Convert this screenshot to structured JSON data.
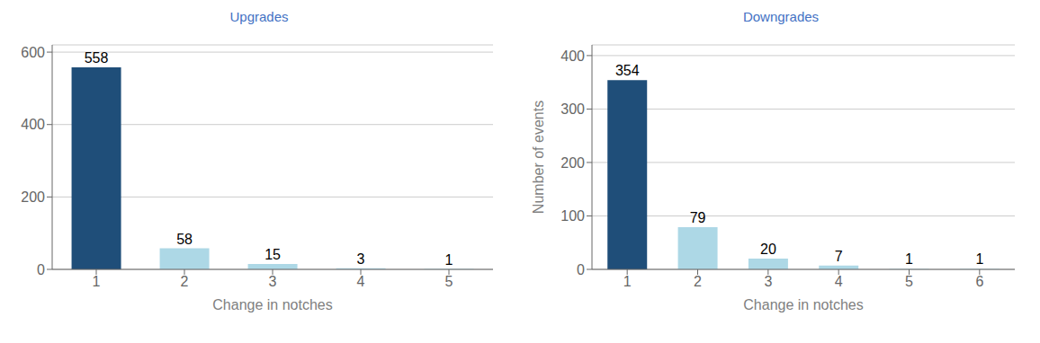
{
  "chart_data": [
    {
      "type": "bar",
      "title": "Upgrades",
      "categories": [
        1,
        2,
        3,
        4,
        5
      ],
      "values": [
        558,
        58,
        15,
        3,
        1
      ],
      "colors": [
        "#1f4e79",
        "#add8e6",
        "#add8e6",
        "#add8e6",
        "#add8e6"
      ],
      "xlabel": "Change in notches",
      "ylim": [
        0,
        620
      ],
      "yticks": [
        0,
        200,
        400,
        600
      ],
      "grid": true,
      "data_labels": true
    },
    {
      "type": "bar",
      "title": "Downgrades",
      "categories": [
        1,
        2,
        3,
        4,
        5,
        6
      ],
      "values": [
        354,
        79,
        20,
        7,
        1,
        1
      ],
      "colors": [
        "#1f4e79",
        "#add8e6",
        "#add8e6",
        "#add8e6",
        "#add8e6",
        "#add8e6"
      ],
      "xlabel": "Change in notches",
      "ylabel": "Number of events",
      "ylim": [
        0,
        420
      ],
      "yticks": [
        0,
        100,
        200,
        300,
        400
      ],
      "grid": true,
      "data_labels": true
    }
  ]
}
